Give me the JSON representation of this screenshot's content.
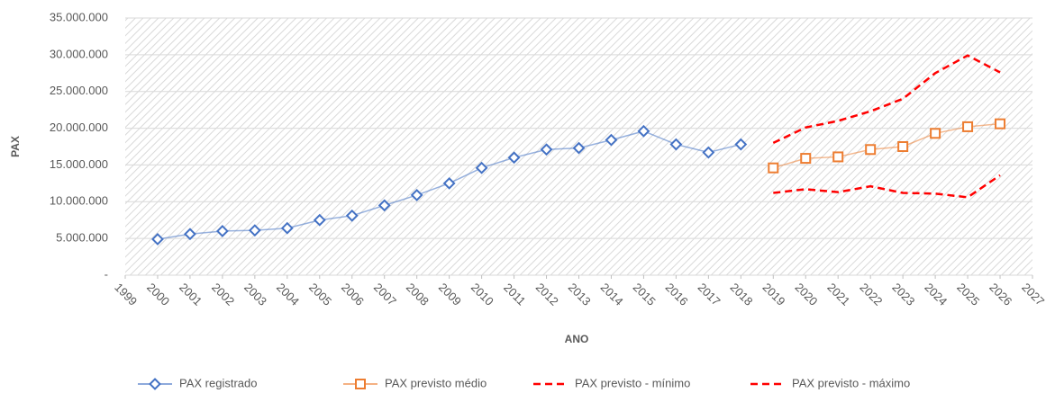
{
  "chart_data": {
    "type": "line",
    "x_label": "ANO",
    "y_label": "PAX",
    "xlim": [
      1999,
      2027
    ],
    "xticks": [
      1999,
      2000,
      2001,
      2002,
      2003,
      2004,
      2005,
      2006,
      2007,
      2008,
      2009,
      2010,
      2011,
      2012,
      2013,
      2014,
      2015,
      2016,
      2017,
      2018,
      2019,
      2020,
      2021,
      2022,
      2023,
      2024,
      2025,
      2026,
      2027
    ],
    "ylim": [
      0,
      35000000
    ],
    "yticks": [
      {
        "value": 0,
        "label": "-"
      },
      {
        "value": 5000000,
        "label": "5.000.000"
      },
      {
        "value": 10000000,
        "label": "10.000.000"
      },
      {
        "value": 15000000,
        "label": "15.000.000"
      },
      {
        "value": 20000000,
        "label": "20.000.000"
      },
      {
        "value": 25000000,
        "label": "25.000.000"
      },
      {
        "value": 30000000,
        "label": "30.000.000"
      },
      {
        "value": 35000000,
        "label": "35.000.000"
      }
    ],
    "grid": true,
    "legend": "bottom",
    "series": [
      {
        "name": "PAX registrado",
        "color": "#4472c4",
        "marker": "diamond",
        "x": [
          2000,
          2001,
          2002,
          2003,
          2004,
          2005,
          2006,
          2007,
          2008,
          2009,
          2010,
          2011,
          2012,
          2013,
          2014,
          2015,
          2016,
          2017,
          2018
        ],
        "values": [
          4900000,
          5600000,
          6000000,
          6100000,
          6400000,
          7500000,
          8100000,
          9500000,
          10900000,
          12500000,
          14600000,
          16000000,
          17100000,
          17300000,
          18400000,
          19600000,
          17800000,
          16700000,
          17800000
        ]
      },
      {
        "name": "PAX previsto médio",
        "color": "#ed7d31",
        "marker": "square",
        "x": [
          2019,
          2020,
          2021,
          2022,
          2023,
          2024,
          2025,
          2026
        ],
        "values": [
          14600000,
          15900000,
          16100000,
          17100000,
          17500000,
          19300000,
          20200000,
          20600000
        ]
      },
      {
        "name": "PAX previsto - mínimo",
        "color": "#ff0000",
        "dash": true,
        "x": [
          2019,
          2020,
          2021,
          2022,
          2023,
          2024,
          2025,
          2026
        ],
        "values": [
          11200000,
          11700000,
          11300000,
          12100000,
          11200000,
          11100000,
          10600000,
          13600000
        ]
      },
      {
        "name": "PAX previsto - máximo",
        "color": "#ff0000",
        "dash": true,
        "x": [
          2019,
          2020,
          2021,
          2022,
          2023,
          2024,
          2025,
          2026
        ],
        "values": [
          18000000,
          20100000,
          21000000,
          22300000,
          24000000,
          27500000,
          29900000,
          27600000
        ]
      }
    ]
  }
}
